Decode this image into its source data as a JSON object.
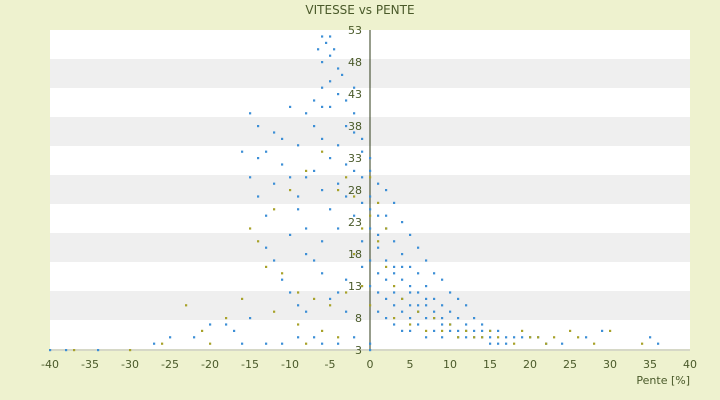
{
  "chart_data": {
    "type": "scatter",
    "title": "VITESSE vs PENTE",
    "xlabel": "Pente [%]",
    "ylabel": "",
    "xlim": [
      -40,
      40
    ],
    "ylim": [
      3,
      53
    ],
    "x_ticks": [
      -40,
      -35,
      -30,
      -25,
      -20,
      -15,
      -10,
      -5,
      0,
      5,
      10,
      15,
      20,
      25,
      30,
      35,
      40
    ],
    "x_tick_labels": [
      "-40",
      "-35",
      "-30",
      "-25",
      "-20",
      "-15",
      "-10",
      "-5",
      "0",
      "5",
      "10",
      "15",
      "20",
      "25",
      "30",
      "35",
      "40"
    ],
    "y_ticks": [
      3,
      8,
      13,
      18,
      23,
      28,
      33,
      38,
      43,
      48,
      53
    ],
    "y_tick_labels": [
      "3",
      "8",
      "13",
      "18",
      "23",
      "28",
      "33",
      "38",
      "43",
      "48",
      "53"
    ],
    "grid": "horizontal alternating bands",
    "series": [
      {
        "color": "#3d8fd6",
        "points": [
          [
            -6,
            52
          ],
          [
            -5,
            52
          ],
          [
            -5.5,
            51
          ],
          [
            -6.5,
            50
          ],
          [
            -4.5,
            50
          ],
          [
            -5,
            49
          ],
          [
            -6,
            48
          ],
          [
            -4,
            47
          ],
          [
            -3.5,
            46
          ],
          [
            -5,
            45
          ],
          [
            -6,
            44
          ],
          [
            -4,
            43
          ],
          [
            -7,
            42
          ],
          [
            -3,
            42
          ],
          [
            -5,
            41
          ],
          [
            -2,
            40
          ],
          [
            -8,
            40
          ],
          [
            -10,
            41
          ],
          [
            -15,
            40
          ],
          [
            -14,
            38
          ],
          [
            -12,
            37
          ],
          [
            -3,
            38
          ],
          [
            -2,
            37
          ],
          [
            -6,
            36
          ],
          [
            -4,
            35
          ],
          [
            -13,
            34
          ],
          [
            -9,
            35
          ],
          [
            -1,
            34
          ],
          [
            -5,
            33
          ],
          [
            -3,
            32
          ],
          [
            -2,
            31
          ],
          [
            0,
            31
          ],
          [
            -7,
            31
          ],
          [
            -11,
            32
          ],
          [
            -14,
            33
          ],
          [
            -1,
            30
          ],
          [
            1,
            29
          ],
          [
            -4,
            29
          ],
          [
            -6,
            28
          ],
          [
            -8,
            30
          ],
          [
            -12,
            29
          ],
          [
            2,
            28
          ],
          [
            -3,
            27
          ],
          [
            0,
            27
          ],
          [
            -1,
            26
          ],
          [
            3,
            26
          ],
          [
            -5,
            25
          ],
          [
            -2,
            24
          ],
          [
            1,
            24
          ],
          [
            4,
            23
          ],
          [
            -9,
            25
          ],
          [
            -13,
            24
          ],
          [
            -4,
            22
          ],
          [
            0,
            22
          ],
          [
            2,
            22
          ],
          [
            5,
            21
          ],
          [
            -1,
            20
          ],
          [
            -6,
            20
          ],
          [
            -10,
            21
          ],
          [
            3,
            20
          ],
          [
            6,
            19
          ],
          [
            1,
            19
          ],
          [
            -2,
            18
          ],
          [
            4,
            18
          ],
          [
            -8,
            18
          ],
          [
            7,
            17
          ],
          [
            2,
            17
          ],
          [
            0,
            17
          ],
          [
            5,
            16
          ],
          [
            3,
            16
          ],
          [
            -1,
            16
          ],
          [
            8,
            15
          ],
          [
            6,
            15
          ],
          [
            1,
            15
          ],
          [
            4,
            14
          ],
          [
            -3,
            14
          ],
          [
            9,
            14
          ],
          [
            2,
            14
          ],
          [
            7,
            13
          ],
          [
            5,
            13
          ],
          [
            0,
            13
          ],
          [
            3,
            12
          ],
          [
            10,
            12
          ],
          [
            6,
            12
          ],
          [
            1,
            12
          ],
          [
            8,
            11
          ],
          [
            4,
            11
          ],
          [
            -5,
            11
          ],
          [
            11,
            11
          ],
          [
            2,
            11
          ],
          [
            7,
            10
          ],
          [
            5,
            10
          ],
          [
            9,
            10
          ],
          [
            3,
            10
          ],
          [
            12,
            10
          ],
          [
            6,
            9
          ],
          [
            1,
            9
          ],
          [
            10,
            9
          ],
          [
            4,
            9
          ],
          [
            8,
            8
          ],
          [
            13,
            8
          ],
          [
            2,
            8
          ],
          [
            5,
            8
          ],
          [
            11,
            8
          ],
          [
            7,
            8
          ],
          [
            14,
            7
          ],
          [
            3,
            7
          ],
          [
            9,
            7
          ],
          [
            6,
            7
          ],
          [
            12,
            7
          ],
          [
            15,
            6
          ],
          [
            4,
            6
          ],
          [
            10,
            6
          ],
          [
            8,
            6
          ],
          [
            16,
            6
          ],
          [
            13,
            6
          ],
          [
            5,
            6
          ],
          [
            17,
            5
          ],
          [
            11,
            5
          ],
          [
            7,
            5
          ],
          [
            18,
            5
          ],
          [
            14,
            5
          ],
          [
            9,
            5
          ],
          [
            19,
            5
          ],
          [
            12,
            5
          ],
          [
            20,
            5
          ],
          [
            15,
            5
          ],
          [
            21,
            5
          ],
          [
            22,
            4
          ],
          [
            16,
            4
          ],
          [
            24,
            4
          ],
          [
            -16,
            34
          ],
          [
            -15,
            30
          ],
          [
            -14,
            27
          ],
          [
            -13,
            19
          ],
          [
            -12,
            17
          ],
          [
            -11,
            14
          ],
          [
            -10,
            12
          ],
          [
            -9,
            10
          ],
          [
            -8,
            9
          ],
          [
            -15,
            8
          ],
          [
            -17,
            6
          ],
          [
            -18,
            7
          ],
          [
            -20,
            7
          ],
          [
            -22,
            5
          ],
          [
            -25,
            5
          ],
          [
            -27,
            4
          ],
          [
            -34,
            3
          ],
          [
            -38,
            3
          ],
          [
            -40,
            3
          ],
          [
            -16,
            4
          ],
          [
            -13,
            4
          ],
          [
            -11,
            4
          ],
          [
            -9,
            5
          ],
          [
            -7,
            5
          ],
          [
            -6,
            4
          ],
          [
            -4,
            4
          ],
          [
            -2,
            5
          ],
          [
            0,
            4
          ],
          [
            0,
            3
          ],
          [
            -3,
            9
          ],
          [
            -4,
            12
          ],
          [
            -6,
            15
          ],
          [
            -7,
            17
          ],
          [
            -8,
            22
          ],
          [
            -9,
            27
          ],
          [
            -10,
            30
          ],
          [
            -11,
            36
          ],
          [
            -7,
            38
          ],
          [
            -6,
            41
          ],
          [
            -2,
            44
          ],
          [
            -1,
            36
          ],
          [
            0,
            33
          ],
          [
            0,
            25
          ],
          [
            1,
            21
          ],
          [
            2,
            24
          ],
          [
            3,
            15
          ],
          [
            4,
            16
          ],
          [
            5,
            12
          ],
          [
            6,
            10
          ],
          [
            7,
            11
          ],
          [
            8,
            9
          ],
          [
            9,
            8
          ],
          [
            10,
            7
          ],
          [
            11,
            6
          ],
          [
            12,
            6
          ],
          [
            13,
            5
          ],
          [
            14,
            6
          ],
          [
            15,
            4
          ],
          [
            17,
            4
          ],
          [
            27,
            5
          ],
          [
            29,
            6
          ],
          [
            36,
            4
          ],
          [
            35,
            5
          ]
        ]
      },
      {
        "color": "#a8a22a",
        "points": [
          [
            -6,
            34
          ],
          [
            -8,
            31
          ],
          [
            -10,
            28
          ],
          [
            -12,
            25
          ],
          [
            -14,
            20
          ],
          [
            -15,
            22
          ],
          [
            -13,
            16
          ],
          [
            -11,
            15
          ],
          [
            -9,
            12
          ],
          [
            -7,
            11
          ],
          [
            -5,
            10
          ],
          [
            -3,
            12
          ],
          [
            -2,
            18
          ],
          [
            -1,
            22
          ],
          [
            0,
            24
          ],
          [
            1,
            20
          ],
          [
            2,
            16
          ],
          [
            3,
            13
          ],
          [
            4,
            11
          ],
          [
            6,
            9
          ],
          [
            8,
            8
          ],
          [
            10,
            7
          ],
          [
            12,
            6
          ],
          [
            14,
            5
          ],
          [
            16,
            5
          ],
          [
            19,
            6
          ],
          [
            21,
            5
          ],
          [
            23,
            5
          ],
          [
            26,
            5
          ],
          [
            28,
            4
          ],
          [
            30,
            6
          ],
          [
            34,
            4
          ],
          [
            -18,
            8
          ],
          [
            -21,
            6
          ],
          [
            -23,
            10
          ],
          [
            -26,
            4
          ],
          [
            -30,
            3
          ],
          [
            -37,
            3
          ],
          [
            -20,
            4
          ],
          [
            -16,
            11
          ],
          [
            -4,
            28
          ],
          [
            -3,
            30
          ],
          [
            -2,
            27
          ],
          [
            0,
            30
          ],
          [
            1,
            26
          ],
          [
            2,
            22
          ],
          [
            -1,
            13
          ],
          [
            0,
            10
          ],
          [
            3,
            8
          ],
          [
            5,
            7
          ],
          [
            7,
            6
          ],
          [
            9,
            6
          ],
          [
            11,
            5
          ],
          [
            13,
            5
          ],
          [
            15,
            6
          ],
          [
            18,
            4
          ],
          [
            20,
            5
          ],
          [
            22,
            4
          ],
          [
            25,
            6
          ],
          [
            -12,
            9
          ],
          [
            -9,
            7
          ],
          [
            -6,
            6
          ],
          [
            -8,
            4
          ],
          [
            -4,
            5
          ]
        ]
      }
    ]
  }
}
